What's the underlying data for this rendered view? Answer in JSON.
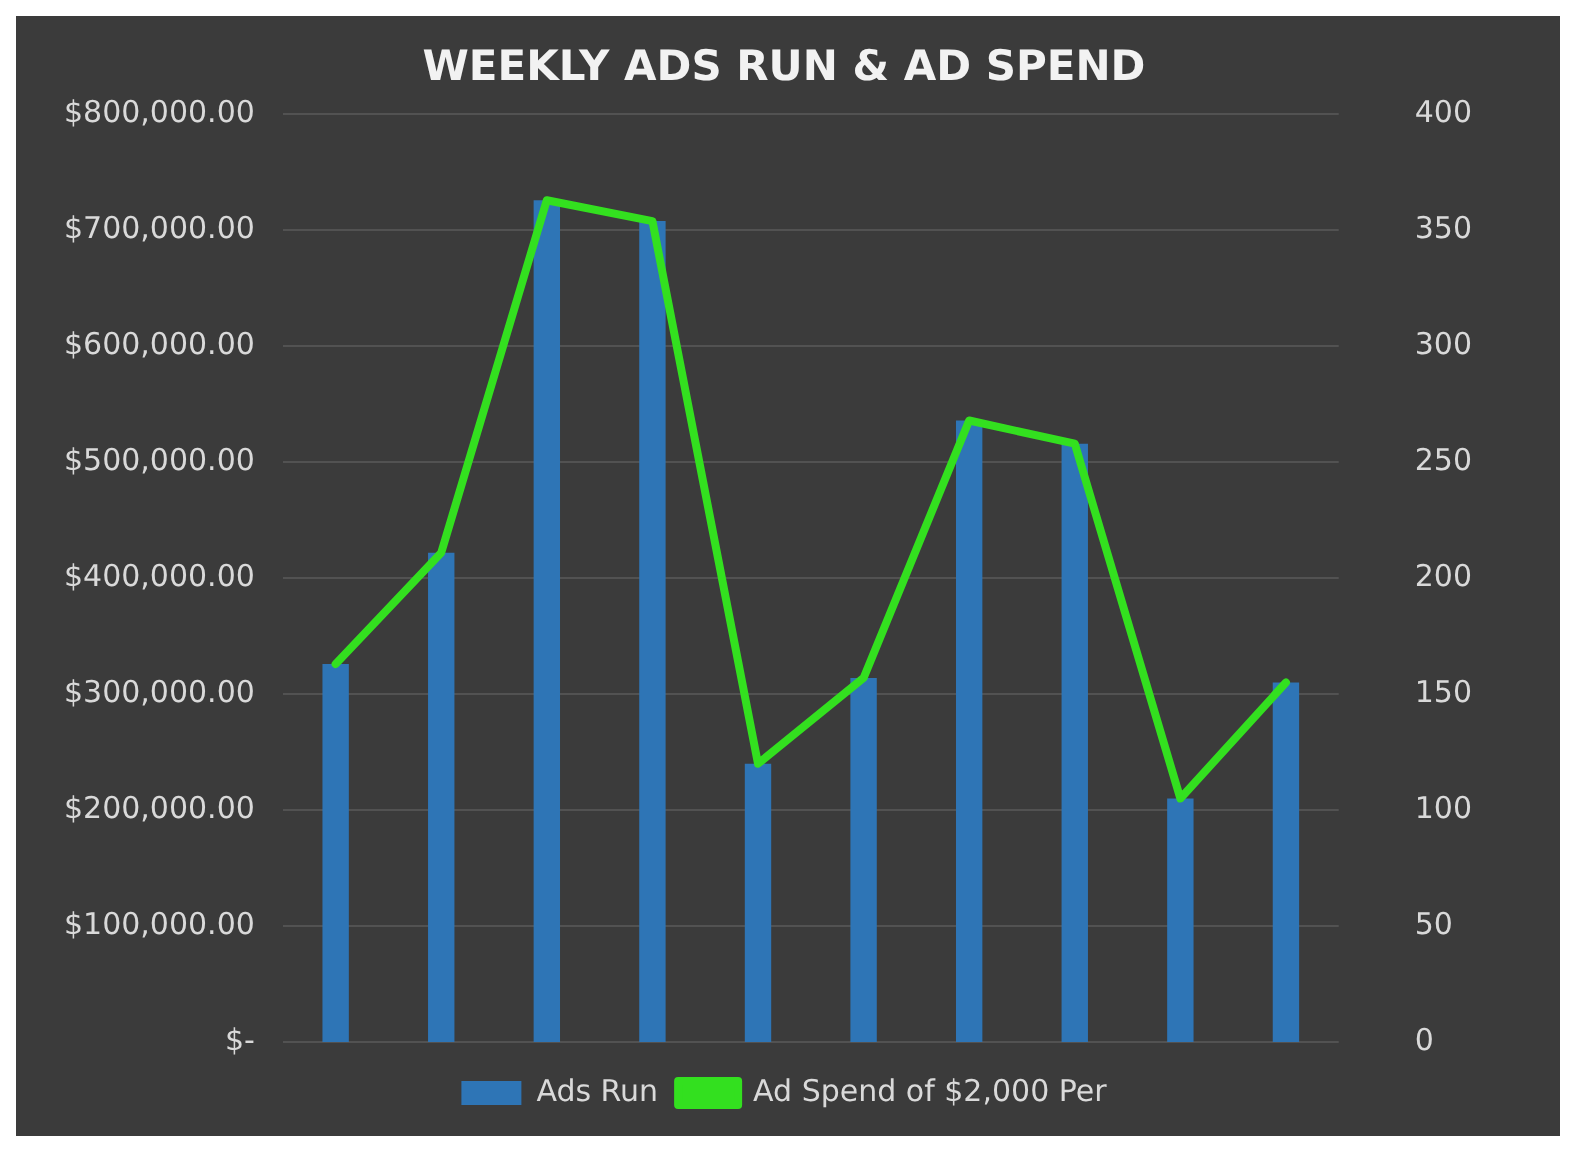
{
  "chart_data": {
    "type": "bar",
    "title": "WEEKLY ADS RUN & AD SPEND",
    "categories": [
      null,
      null,
      null,
      null,
      null,
      null,
      null,
      null,
      null,
      null
    ],
    "series": [
      {
        "name": "Ads Run",
        "axis": "y2",
        "color": "#2e75b6",
        "values": [
          163,
          211,
          363,
          354,
          120,
          157,
          268,
          258,
          105,
          155
        ]
      },
      {
        "name": "Ad Spend of $2,000 Per",
        "type": "line",
        "axis": "y",
        "color": "#33e01f",
        "values": [
          326000,
          422000,
          726000,
          708000,
          240000,
          314000,
          536000,
          516000,
          210000,
          310000
        ]
      }
    ],
    "ylim": [
      0,
      800000
    ],
    "yticks": [
      {
        "value": 0,
        "label": "$-"
      },
      {
        "value": 100000,
        "label": "$100,000.00"
      },
      {
        "value": 200000,
        "label": "$200,000.00"
      },
      {
        "value": 300000,
        "label": "$300,000.00"
      },
      {
        "value": 400000,
        "label": "$400,000.00"
      },
      {
        "value": 500000,
        "label": "$500,000.00"
      },
      {
        "value": 600000,
        "label": "$600,000.00"
      },
      {
        "value": 700000,
        "label": "$700,000.00"
      },
      {
        "value": 800000,
        "label": "$800,000.00"
      }
    ],
    "y2lim": [
      0,
      400
    ],
    "y2ticks": [
      0,
      50,
      100,
      150,
      200,
      250,
      300,
      350,
      400
    ],
    "grid": "y",
    "legend": "bottom",
    "marker": "none",
    "line_style": "solid"
  }
}
